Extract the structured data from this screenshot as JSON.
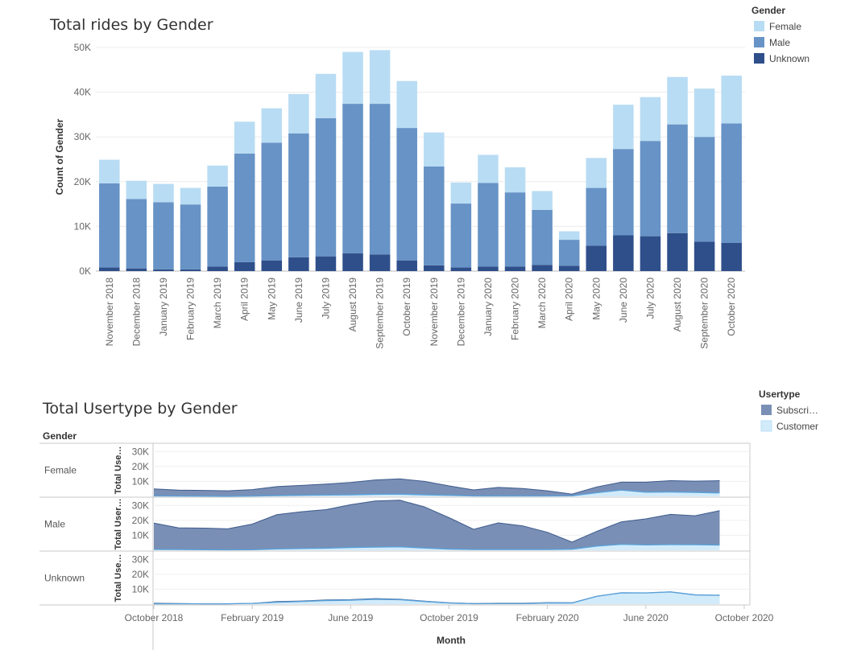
{
  "colors": {
    "female": "#b8dcf3",
    "male": "#6793c6",
    "unknown": "#2f4f8a",
    "subscriber": "#7a8fb5",
    "subscriber_line": "#3d5a8c",
    "customer": "#d2ebfa",
    "customer_line": "#5aa0d8"
  },
  "chart_data": [
    {
      "type": "bar",
      "stacked": true,
      "title": "Total rides by Gender",
      "ylabel": "Count of Gender",
      "ylim": [
        0,
        50000
      ],
      "yticks": [
        0,
        10000,
        20000,
        30000,
        40000,
        50000
      ],
      "ytick_labels": [
        "0K",
        "10K",
        "20K",
        "30K",
        "40K",
        "50K"
      ],
      "grid": true,
      "legend_position": "top-right",
      "legend_title": "Gender",
      "categories": [
        "November 2018",
        "December 2018",
        "January 2019",
        "February 2019",
        "March 2019",
        "April 2019",
        "May 2019",
        "June 2019",
        "July 2019",
        "August 2019",
        "September 2019",
        "October 2019",
        "November 2019",
        "December 2019",
        "January 2020",
        "February 2020",
        "March 2020",
        "April 2020",
        "May 2020",
        "June 2020",
        "July 2020",
        "August 2020",
        "September 2020",
        "October 2020"
      ],
      "series": [
        {
          "name": "Unknown",
          "color_key": "unknown",
          "values": [
            800,
            600,
            400,
            400,
            1000,
            2000,
            2400,
            3100,
            3300,
            4000,
            3700,
            2400,
            1300,
            800,
            1000,
            1000,
            1400,
            1200,
            5700,
            8000,
            7800,
            8500,
            6600,
            6300
          ]
        },
        {
          "name": "Male",
          "color_key": "male",
          "values": [
            18800,
            15500,
            15000,
            14500,
            17900,
            24300,
            26300,
            27700,
            30900,
            33400,
            33700,
            29600,
            22100,
            14300,
            18700,
            16600,
            12300,
            5800,
            12900,
            19300,
            21300,
            24300,
            23400,
            26700
          ]
        },
        {
          "name": "Female",
          "color_key": "female",
          "values": [
            5300,
            4100,
            4100,
            3700,
            4700,
            7100,
            7700,
            8800,
            9900,
            11600,
            12000,
            10500,
            7600,
            4700,
            6300,
            5600,
            4200,
            1900,
            6700,
            9900,
            9800,
            10600,
            10800,
            10700
          ]
        }
      ]
    },
    {
      "type": "area",
      "title": "Total Usertype by Gender",
      "xlabel": "Month",
      "row_header": "Gender",
      "legend_title": "Usertype",
      "legend_position": "top-right",
      "legend_labels": [
        "Subscri…",
        "Customer"
      ],
      "x": [
        "2018-10",
        "2018-11",
        "2018-12",
        "2019-01",
        "2019-02",
        "2019-03",
        "2019-04",
        "2019-05",
        "2019-06",
        "2019-07",
        "2019-08",
        "2019-09",
        "2019-10",
        "2019-11",
        "2019-12",
        "2020-01",
        "2020-02",
        "2020-03",
        "2020-04",
        "2020-05",
        "2020-06",
        "2020-07",
        "2020-08",
        "2020-09",
        "2020-10"
      ],
      "xticks": [
        "2018-10",
        "2019-02",
        "2019-06",
        "2019-10",
        "2020-02",
        "2020-06",
        "2020-10"
      ],
      "xtick_labels": [
        "October 2018",
        "February 2019",
        "June 2019",
        "October 2019",
        "February 2020",
        "June 2020",
        "October 2020"
      ],
      "ylim": [
        0,
        35000
      ],
      "yticks": [
        10000,
        20000,
        30000
      ],
      "ytick_labels": [
        "10K",
        "20K",
        "30K"
      ],
      "panels": [
        {
          "label": "Female",
          "ylabel": "Total Use…",
          "series": [
            {
              "name": "Subscriber",
              "color_key": "subscriber",
              "values": [
                5000,
                4200,
                4000,
                3700,
                4500,
                6500,
                7300,
                8200,
                9300,
                11000,
                11700,
                10000,
                7000,
                4300,
                6000,
                5300,
                3700,
                1500,
                6300,
                9500,
                9500,
                10500,
                10200,
                10500,
                null
              ]
            },
            {
              "name": "Customer",
              "color_key": "customer",
              "values": [
                300,
                200,
                150,
                100,
                200,
                500,
                700,
                900,
                1000,
                1400,
                1500,
                1100,
                700,
                300,
                300,
                300,
                300,
                400,
                2500,
                4200,
                2800,
                2900,
                2700,
                2300,
                null
              ]
            }
          ]
        },
        {
          "label": "Male",
          "ylabel": "Total User…",
          "series": [
            {
              "name": "Subscriber",
              "color_key": "subscriber",
              "values": [
                18200,
                15000,
                14800,
                14300,
                17500,
                23800,
                25800,
                27200,
                30500,
                33000,
                33500,
                29000,
                21800,
                14000,
                18300,
                16300,
                12000,
                5500,
                12600,
                19000,
                21000,
                24000,
                23100,
                26500,
                null
              ]
            },
            {
              "name": "Customer",
              "color_key": "customer",
              "values": [
                600,
                500,
                400,
                300,
                400,
                900,
                1200,
                1400,
                1900,
                2100,
                2300,
                1500,
                800,
                500,
                500,
                500,
                500,
                700,
                2800,
                4000,
                3600,
                3800,
                3700,
                3500,
                null
              ]
            }
          ]
        },
        {
          "label": "Unknown",
          "ylabel": "Total Use…",
          "series": [
            {
              "name": "Subscriber",
              "color_key": "subscriber",
              "values": [
                600,
                400,
                200,
                200,
                500,
                1700,
                2100,
                2800,
                3000,
                3700,
                3300,
                2000,
                900,
                400,
                600,
                600,
                1000,
                900,
                5200,
                7600,
                7500,
                8200,
                6200,
                5900,
                null
              ]
            },
            {
              "name": "Customer",
              "color_key": "customer",
              "values": [
                200,
                200,
                200,
                200,
                500,
                1300,
                1800,
                2400,
                2700,
                3300,
                3000,
                1800,
                800,
                300,
                400,
                400,
                800,
                800,
                5200,
                7600,
                7500,
                8200,
                6200,
                5900,
                null
              ]
            }
          ]
        }
      ]
    }
  ]
}
